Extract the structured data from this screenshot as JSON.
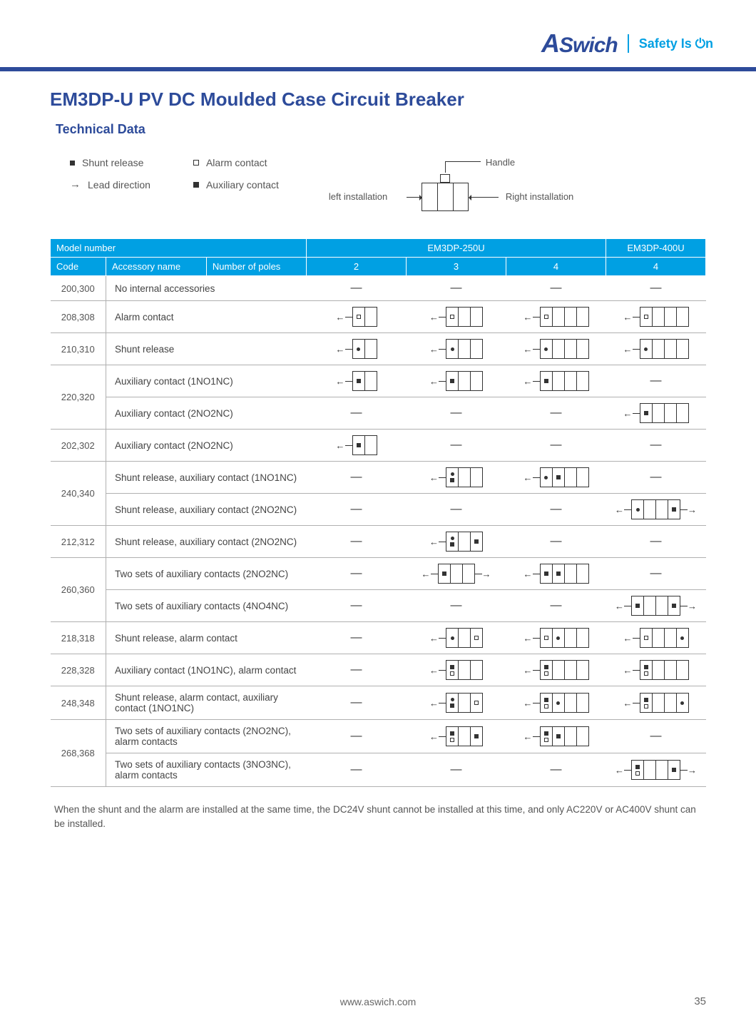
{
  "brand": {
    "name_part1": "A",
    "name_part2": "Swich",
    "tagline_prefix": "Safety Is ",
    "tagline_power": "⏻n"
  },
  "title": "EM3DP-U PV DC Moulded Case Circuit Breaker",
  "subtitle": "Technical Data",
  "legend": {
    "shunt": "Shunt release",
    "alarm": "Alarm contact",
    "lead": "Lead direction",
    "aux": "Auxiliary contact"
  },
  "handle_dia": {
    "handle": "Handle",
    "left": "left  installation",
    "right": "Right installation"
  },
  "headers": {
    "model": "Model number",
    "m250": "EM3DP-250U",
    "m400": "EM3DP-400U",
    "code": "Code",
    "acc": "Accessory name",
    "poles": "Number of poles",
    "p2": "2",
    "p3": "3",
    "p4a": "4",
    "p4b": "4"
  },
  "rows": [
    {
      "code": "200,300",
      "name": "No internal accessories",
      "cells": [
        "dash",
        "dash",
        "dash",
        "dash"
      ]
    },
    {
      "code": "208,308",
      "name": "Alarm contact",
      "cells": [
        "d:L|sq,|",
        "d:L|sq,,|",
        "d:L|sq,,,|",
        "d:L|sq,,,|"
      ]
    },
    {
      "code": "210,310",
      "name": "Shunt release",
      "cells": [
        "d:L|dot,|",
        "d:L|dot,,|",
        "d:L|dot,,,|",
        "d:L|dot,,,|"
      ]
    },
    {
      "code": "220,320",
      "rowspan": 2,
      "name": "Auxiliary contact (1NO1NC)",
      "cells": [
        "d:L|sqf,|",
        "d:L|sqf,,|",
        "d:L|sqf,,,|",
        "dash"
      ]
    },
    {
      "name": "Auxiliary contact (2NO2NC)",
      "cells": [
        "dash",
        "dash",
        "dash",
        "d:L|sqf,,,|"
      ]
    },
    {
      "code": "202,302",
      "name": "Auxiliary contact (2NO2NC)",
      "cells": [
        "d:L|sqf,|",
        "dash",
        "dash",
        "dash"
      ]
    },
    {
      "code": "240,340",
      "rowspan": 2,
      "name": "Shunt release, auxiliary contact (1NO1NC)",
      "cells": [
        "dash",
        "d:L|dot+sqf,,|",
        "d:L|dot,sqf,,|",
        "dash"
      ]
    },
    {
      "name": "Shunt release, auxiliary contact (2NO2NC)",
      "cells": [
        "dash",
        "dash",
        "dash",
        "d:L|dot,,,sqf|R"
      ]
    },
    {
      "code": "212,312",
      "name": "Shunt release, auxiliary contact (2NO2NC)",
      "cells": [
        "dash",
        "d:L|dot+sqf,,sqf|",
        "dash",
        "dash"
      ]
    },
    {
      "code": "260,360",
      "rowspan": 2,
      "name": "Two sets of auxiliary contacts (2NO2NC)",
      "cells": [
        "dash",
        "d:L|sqf,,|R",
        "d:L|sqf,sqf,,|",
        "dash"
      ]
    },
    {
      "name": "Two sets of auxiliary contacts (4NO4NC)",
      "cells": [
        "dash",
        "dash",
        "dash",
        "d:L|sqf,,,sqf|R"
      ]
    },
    {
      "code": "218,318",
      "name": "Shunt release, alarm contact",
      "cells": [
        "dash",
        "d:L|dot,,sq|",
        "d:L|sq,dot,,|",
        "d:L|sq,,,dot|"
      ]
    },
    {
      "code": "228,328",
      "name": "Auxiliary contact (1NO1NC), alarm contact",
      "cells": [
        "dash",
        "d:L|sqf+sq,,|",
        "d:L|sqf+sq,,,|",
        "d:L|sqf+sq,,,|"
      ]
    },
    {
      "code": "248,348",
      "name": "Shunt release, alarm contact, auxiliary contact (1NO1NC)",
      "cells": [
        "dash",
        "d:L|dot+sqf,,sq|",
        "d:L|sqf+sq,dot,,|",
        "d:L|sqf+sq,,,dot|"
      ]
    },
    {
      "code": "268,368",
      "rowspan": 2,
      "name": "Two sets of auxiliary contacts (2NO2NC), alarm contacts",
      "cells": [
        "dash",
        "d:L|sqf+sq,,sqf|",
        "d:L|sqf+sq,sqf,,|",
        "dash"
      ]
    },
    {
      "name": "Two sets of auxiliary contacts (3NO3NC), alarm contacts",
      "cells": [
        "dash",
        "dash",
        "dash",
        "d:L|sqf+sq,,,sqf|R"
      ]
    }
  ],
  "note": "When the shunt and the alarm are installed at the same time, the DC24V shunt cannot be installed at this time, and only AC220V or AC400V shunt can be installed.",
  "footer_url": "www.aswich.com",
  "page_number": "35",
  "colors": {
    "brand_blue": "#00a0e3",
    "dark_blue": "#2d4b9a"
  }
}
